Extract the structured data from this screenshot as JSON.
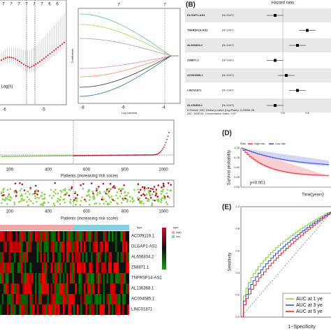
{
  "panel_a": {
    "left": {
      "xlabel": "Log(λ)",
      "xticks": [
        "-6",
        "-5"
      ],
      "top_ticks": [
        "7",
        "7",
        "7",
        "7",
        "7",
        "7",
        "6",
        "6"
      ]
    },
    "right": {
      "ylabel": "Coefficients",
      "xlabel": "Log Lambda",
      "xticks": [
        "-8",
        "-6",
        "-4"
      ],
      "top_ticks": [
        "7",
        "7"
      ]
    }
  },
  "panel_b": {
    "label": "(B)",
    "title": "Hazard ratio",
    "rows": [
      {
        "name": "DLGAP1-AS1",
        "n": "(N=1047)"
      },
      {
        "name": "TNFRSF14-AS1",
        "n": "(N=1047)"
      },
      {
        "name": "AL606834.2",
        "n": "(N=1047)"
      },
      {
        "name": "Z68871.1",
        "n": "(N=1047)"
      },
      {
        "name": "AC004585.1",
        "n": "(N=1047)"
      },
      {
        "name": "LINC01871",
        "n": "(N=1047)"
      },
      {
        "name": "AL136368.1",
        "n": "(N=1047)"
      }
    ],
    "footnote": [
      "# Events: 150; Global p-value (Log-Rank): 6.2966e-09",
      "AIC: 1998.94; Concordance Index: 0.67"
    ],
    "xticks": [
      "0.6",
      "0.8",
      "1"
    ]
  },
  "panel_c": {
    "risk_xticks": [
      "200",
      "400",
      "600",
      "800",
      "1000"
    ],
    "risk_xlabel": "Patients (increasing risk socre)",
    "scatter_xticks": [
      "200",
      "400",
      "600",
      "800",
      "1000"
    ],
    "scatter_xlabel": "Patients (increasing risk score)",
    "heatmap": {
      "genes": [
        "AC009119.1",
        "DLGAP1-AS1",
        "AL606834.2",
        "Z68871.1",
        "TNFRSF14-AS1",
        "AL136368.1",
        "AC004585.1",
        "LINC01871"
      ],
      "legend_title": "type",
      "legend": [
        "high",
        "low"
      ],
      "scale_title": "type"
    }
  },
  "panel_d": {
    "label": "(D)",
    "legend_title": "Risk",
    "legend": [
      "High risk",
      "Low risk"
    ],
    "ylabel": "Survival probability",
    "yticks": [
      "1.00",
      "0.75",
      "0.50",
      "0.25",
      "0.00"
    ],
    "pvalue": "p<0.001",
    "xlabel": "Time(years)"
  },
  "panel_e": {
    "label": "(E)",
    "ylabel": "Sensitivity",
    "yticks": [
      "1.0",
      "0.8",
      "0.6",
      "0.4",
      "0.2",
      "0.0"
    ],
    "xlabel": "1−Specificity",
    "legend": [
      "AUC at 1 ye",
      "AUC at 3 ye",
      "AUC at 5 ye"
    ]
  }
}
